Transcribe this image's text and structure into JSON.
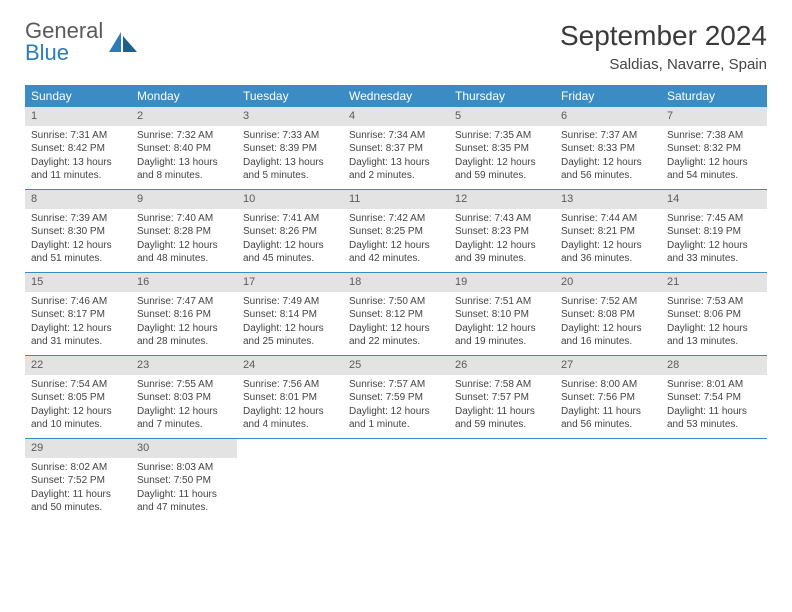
{
  "logo": {
    "word1": "General",
    "word2": "Blue"
  },
  "title": "September 2024",
  "location": "Saldias, Navarre, Spain",
  "colors": {
    "header_bg": "#3b8cc4",
    "daynum_bg": "#e3e3e3",
    "row_border": "#3b8cc4",
    "logo_blue": "#2a7db8"
  },
  "day_names": [
    "Sunday",
    "Monday",
    "Tuesday",
    "Wednesday",
    "Thursday",
    "Friday",
    "Saturday"
  ],
  "weeks": [
    [
      {
        "n": "1",
        "sr": "7:31 AM",
        "ss": "8:42 PM",
        "dl": "13 hours and 11 minutes."
      },
      {
        "n": "2",
        "sr": "7:32 AM",
        "ss": "8:40 PM",
        "dl": "13 hours and 8 minutes."
      },
      {
        "n": "3",
        "sr": "7:33 AM",
        "ss": "8:39 PM",
        "dl": "13 hours and 5 minutes."
      },
      {
        "n": "4",
        "sr": "7:34 AM",
        "ss": "8:37 PM",
        "dl": "13 hours and 2 minutes."
      },
      {
        "n": "5",
        "sr": "7:35 AM",
        "ss": "8:35 PM",
        "dl": "12 hours and 59 minutes."
      },
      {
        "n": "6",
        "sr": "7:37 AM",
        "ss": "8:33 PM",
        "dl": "12 hours and 56 minutes."
      },
      {
        "n": "7",
        "sr": "7:38 AM",
        "ss": "8:32 PM",
        "dl": "12 hours and 54 minutes."
      }
    ],
    [
      {
        "n": "8",
        "sr": "7:39 AM",
        "ss": "8:30 PM",
        "dl": "12 hours and 51 minutes."
      },
      {
        "n": "9",
        "sr": "7:40 AM",
        "ss": "8:28 PM",
        "dl": "12 hours and 48 minutes."
      },
      {
        "n": "10",
        "sr": "7:41 AM",
        "ss": "8:26 PM",
        "dl": "12 hours and 45 minutes."
      },
      {
        "n": "11",
        "sr": "7:42 AM",
        "ss": "8:25 PM",
        "dl": "12 hours and 42 minutes."
      },
      {
        "n": "12",
        "sr": "7:43 AM",
        "ss": "8:23 PM",
        "dl": "12 hours and 39 minutes."
      },
      {
        "n": "13",
        "sr": "7:44 AM",
        "ss": "8:21 PM",
        "dl": "12 hours and 36 minutes."
      },
      {
        "n": "14",
        "sr": "7:45 AM",
        "ss": "8:19 PM",
        "dl": "12 hours and 33 minutes."
      }
    ],
    [
      {
        "n": "15",
        "sr": "7:46 AM",
        "ss": "8:17 PM",
        "dl": "12 hours and 31 minutes."
      },
      {
        "n": "16",
        "sr": "7:47 AM",
        "ss": "8:16 PM",
        "dl": "12 hours and 28 minutes."
      },
      {
        "n": "17",
        "sr": "7:49 AM",
        "ss": "8:14 PM",
        "dl": "12 hours and 25 minutes."
      },
      {
        "n": "18",
        "sr": "7:50 AM",
        "ss": "8:12 PM",
        "dl": "12 hours and 22 minutes."
      },
      {
        "n": "19",
        "sr": "7:51 AM",
        "ss": "8:10 PM",
        "dl": "12 hours and 19 minutes."
      },
      {
        "n": "20",
        "sr": "7:52 AM",
        "ss": "8:08 PM",
        "dl": "12 hours and 16 minutes."
      },
      {
        "n": "21",
        "sr": "7:53 AM",
        "ss": "8:06 PM",
        "dl": "12 hours and 13 minutes."
      }
    ],
    [
      {
        "n": "22",
        "sr": "7:54 AM",
        "ss": "8:05 PM",
        "dl": "12 hours and 10 minutes."
      },
      {
        "n": "23",
        "sr": "7:55 AM",
        "ss": "8:03 PM",
        "dl": "12 hours and 7 minutes."
      },
      {
        "n": "24",
        "sr": "7:56 AM",
        "ss": "8:01 PM",
        "dl": "12 hours and 4 minutes."
      },
      {
        "n": "25",
        "sr": "7:57 AM",
        "ss": "7:59 PM",
        "dl": "12 hours and 1 minute."
      },
      {
        "n": "26",
        "sr": "7:58 AM",
        "ss": "7:57 PM",
        "dl": "11 hours and 59 minutes."
      },
      {
        "n": "27",
        "sr": "8:00 AM",
        "ss": "7:56 PM",
        "dl": "11 hours and 56 minutes."
      },
      {
        "n": "28",
        "sr": "8:01 AM",
        "ss": "7:54 PM",
        "dl": "11 hours and 53 minutes."
      }
    ],
    [
      {
        "n": "29",
        "sr": "8:02 AM",
        "ss": "7:52 PM",
        "dl": "11 hours and 50 minutes."
      },
      {
        "n": "30",
        "sr": "8:03 AM",
        "ss": "7:50 PM",
        "dl": "11 hours and 47 minutes."
      },
      null,
      null,
      null,
      null,
      null
    ]
  ],
  "labels": {
    "sunrise": "Sunrise:",
    "sunset": "Sunset:",
    "daylight": "Daylight:"
  }
}
